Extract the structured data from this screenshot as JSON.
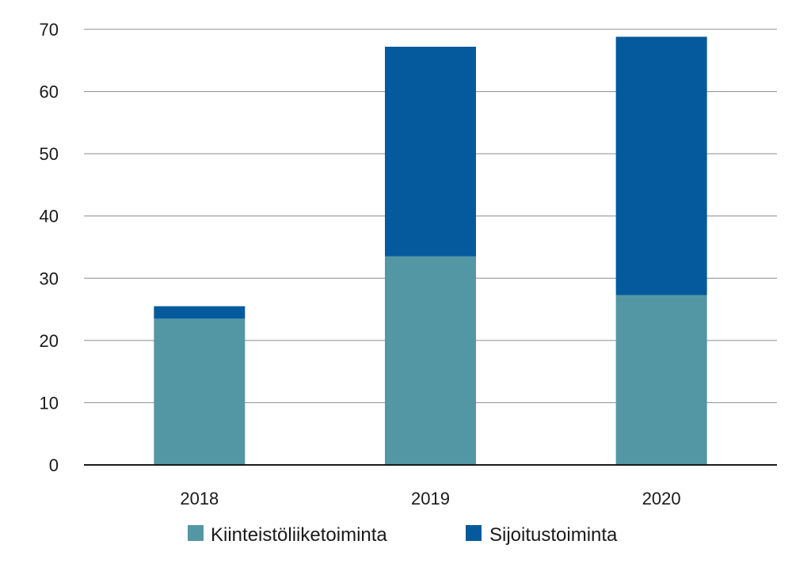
{
  "chart_data": {
    "type": "bar",
    "stacked": true,
    "title": "",
    "xlabel": "",
    "ylabel": "",
    "categories": [
      "2018",
      "2019",
      "2020"
    ],
    "series": [
      {
        "name": "Kiinteistöliiketoiminta",
        "color": "#5297a3",
        "values": [
          23.5,
          33.5,
          27.3
        ]
      },
      {
        "name": "Sijoitustoiminta",
        "color": "#045a9c",
        "values": [
          2.0,
          33.7,
          41.5
        ]
      }
    ],
    "ylim": [
      0,
      70
    ],
    "yticks": [
      0,
      10,
      20,
      30,
      40,
      50,
      60,
      70
    ],
    "grid": true,
    "legend": "bottom"
  }
}
